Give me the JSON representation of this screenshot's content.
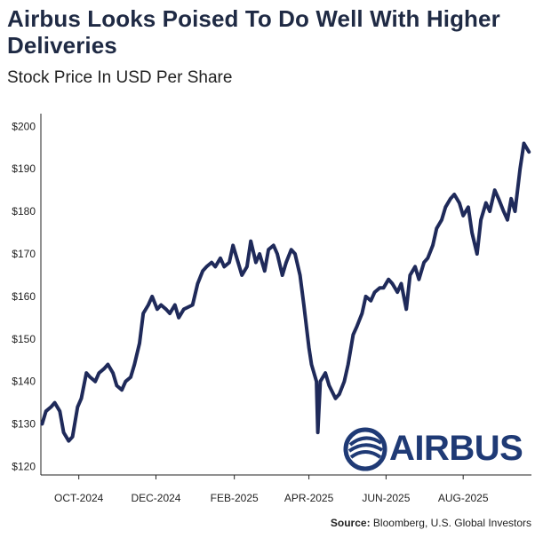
{
  "header": {
    "title": "Airbus Looks Poised To Do Well With Higher Deliveries",
    "subtitle": "Stock Price In USD Per Share"
  },
  "footer": {
    "source_label": "Source:",
    "source_text": "Bloomberg, U.S. Global Investors"
  },
  "logo": {
    "text": "AIRBUS"
  },
  "colors": {
    "line": "#1f2a5a",
    "title": "#1f2a44",
    "axis": "#222222",
    "logo": "#1f3a75"
  },
  "chart_data": {
    "type": "line",
    "title": "Airbus Looks Poised To Do Well With Higher Deliveries",
    "subtitle": "Stock Price In USD Per Share",
    "xlabel": "",
    "ylabel": "",
    "ylim": [
      118,
      203
    ],
    "xlim": [
      "2024-09-01",
      "2025-09-24"
    ],
    "y_ticks": [
      120,
      130,
      140,
      150,
      160,
      170,
      180,
      190,
      200
    ],
    "y_tick_labels": [
      "$120",
      "$130",
      "$140",
      "$150",
      "$160",
      "$170",
      "$180",
      "$190",
      "$200"
    ],
    "x_ticks": [
      "2024-10-01",
      "2024-12-01",
      "2025-02-01",
      "2025-04-01",
      "2025-06-01",
      "2025-08-01"
    ],
    "x_tick_labels": [
      "OCT-2024",
      "DEC-2024",
      "FEB-2025",
      "APR-2025",
      "JUN-2025",
      "AUG-2025"
    ],
    "grid": false,
    "legend": "none",
    "series": [
      {
        "x": [
          "2024-09-02",
          "2024-09-05",
          "2024-09-09",
          "2024-09-12",
          "2024-09-16",
          "2024-09-19",
          "2024-09-23",
          "2024-09-26",
          "2024-09-30",
          "2024-10-03",
          "2024-10-07",
          "2024-10-10",
          "2024-10-14",
          "2024-10-17",
          "2024-10-21",
          "2024-10-24",
          "2024-10-28",
          "2024-10-31",
          "2024-11-04",
          "2024-11-07",
          "2024-11-11",
          "2024-11-14",
          "2024-11-18",
          "2024-11-21",
          "2024-11-25",
          "2024-11-28",
          "2024-12-02",
          "2024-12-05",
          "2024-12-09",
          "2024-12-12",
          "2024-12-16",
          "2024-12-19",
          "2024-12-23",
          "2024-12-30",
          "2025-01-03",
          "2025-01-07",
          "2025-01-10",
          "2025-01-14",
          "2025-01-17",
          "2025-01-21",
          "2025-01-24",
          "2025-01-28",
          "2025-01-31",
          "2025-02-04",
          "2025-02-07",
          "2025-02-11",
          "2025-02-14",
          "2025-02-18",
          "2025-02-21",
          "2025-02-25",
          "2025-02-28",
          "2025-03-04",
          "2025-03-07",
          "2025-03-11",
          "2025-03-14",
          "2025-03-18",
          "2025-03-21",
          "2025-03-25",
          "2025-03-28",
          "2025-04-01",
          "2025-04-03",
          "2025-04-07",
          "2025-04-08",
          "2025-04-10",
          "2025-04-14",
          "2025-04-17",
          "2025-04-22",
          "2025-04-25",
          "2025-04-29",
          "2025-05-02",
          "2025-05-06",
          "2025-05-09",
          "2025-05-13",
          "2025-05-16",
          "2025-05-20",
          "2025-05-23",
          "2025-05-27",
          "2025-05-30",
          "2025-06-03",
          "2025-06-06",
          "2025-06-10",
          "2025-06-13",
          "2025-06-17",
          "2025-06-20",
          "2025-06-24",
          "2025-06-27",
          "2025-07-01",
          "2025-07-04",
          "2025-07-08",
          "2025-07-11",
          "2025-07-15",
          "2025-07-18",
          "2025-07-22",
          "2025-07-25",
          "2025-07-29",
          "2025-08-01",
          "2025-08-05",
          "2025-08-08",
          "2025-08-12",
          "2025-08-15",
          "2025-08-19",
          "2025-08-22",
          "2025-08-26",
          "2025-08-29",
          "2025-09-02",
          "2025-09-05",
          "2025-09-08",
          "2025-09-11",
          "2025-09-15",
          "2025-09-18",
          "2025-09-22"
        ],
        "values": [
          130,
          133,
          134,
          135,
          133,
          128,
          126,
          127,
          134,
          136,
          142,
          141,
          140,
          142,
          143,
          144,
          142,
          139,
          138,
          140,
          141,
          144,
          149,
          156,
          158,
          160,
          157,
          158,
          157,
          156,
          158,
          155,
          157,
          158,
          163,
          166,
          167,
          168,
          167,
          169,
          167,
          168,
          172,
          168,
          165,
          167,
          173,
          168,
          170,
          166,
          171,
          172,
          170,
          165,
          168,
          171,
          170,
          165,
          158,
          148,
          144,
          140,
          128,
          140,
          142,
          139,
          136,
          137,
          140,
          144,
          151,
          153,
          156,
          160,
          159,
          161,
          162,
          162,
          164,
          163,
          161,
          163,
          157,
          165,
          167,
          164,
          168,
          169,
          172,
          176,
          178,
          181,
          183,
          184,
          182,
          179,
          181,
          175,
          170,
          178,
          182,
          180,
          185,
          183,
          180,
          178,
          183,
          180,
          190,
          196,
          194
        ]
      }
    ],
    "annotations": []
  }
}
